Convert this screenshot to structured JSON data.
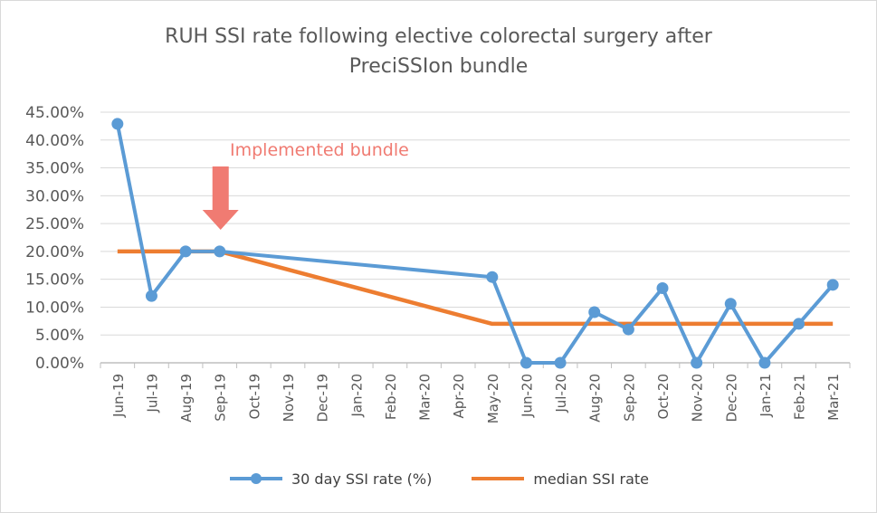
{
  "chart_data": {
    "type": "line",
    "title_line1": "RUH SSI rate following elective colorectal surgery after",
    "title_line2": "PreciSSIon bundle",
    "categories": [
      "Jun-19",
      "Jul-19",
      "Aug-19",
      "Sep-19",
      "Oct-19",
      "Nov-19",
      "Dec-19",
      "Jan-20",
      "Feb-20",
      "Mar-20",
      "Apr-20",
      "May-20",
      "Jun-20",
      "Jul-20",
      "Aug-20",
      "Sep-20",
      "Oct-20",
      "Nov-20",
      "Dec-20",
      "Jan-21",
      "Feb-21",
      "Mar-21"
    ],
    "yticks": [
      "0.00%",
      "5.00%",
      "10.00%",
      "15.00%",
      "20.00%",
      "25.00%",
      "30.00%",
      "35.00%",
      "40.00%",
      "45.00%"
    ],
    "ylim": [
      0,
      45
    ],
    "grid": true,
    "legend_position": "bottom",
    "series": [
      {
        "name": "30 day SSI rate (%)",
        "color": "#5b9bd5",
        "marker": "circle",
        "points": [
          [
            0,
            42.9
          ],
          [
            1,
            12.0
          ],
          [
            2,
            20.0
          ],
          [
            3,
            20.0
          ],
          [
            11,
            15.4
          ],
          [
            12,
            0
          ],
          [
            13,
            0
          ],
          [
            14,
            9.1
          ],
          [
            15,
            6.0
          ],
          [
            16,
            13.4
          ],
          [
            17,
            0
          ],
          [
            18,
            10.6
          ],
          [
            19,
            0
          ],
          [
            20,
            7.0
          ],
          [
            21,
            14.0
          ]
        ]
      },
      {
        "name": "median SSI rate",
        "color": "#ed7d31",
        "marker": "none",
        "points": [
          [
            0,
            20.0
          ],
          [
            3,
            20.0
          ],
          [
            11,
            7.0
          ],
          [
            21,
            7.0
          ]
        ]
      }
    ],
    "annotation": {
      "text": "Implemented bundle",
      "color": "#f07b72",
      "arrow_category": "Sep-19"
    }
  }
}
